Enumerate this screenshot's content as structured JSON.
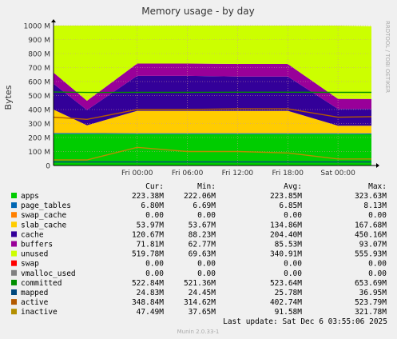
{
  "chart_data": {
    "type": "area",
    "title": "Memory usage - by day",
    "ylabel": "Bytes",
    "side_label": "RRDTOOL / TOBI OETIKER",
    "ylim": [
      0,
      1000
    ],
    "yticks": [
      "0",
      "100 M",
      "200 M",
      "300 M",
      "400 M",
      "500 M",
      "600 M",
      "700 M",
      "800 M",
      "900 M",
      "1000 M"
    ],
    "xticks": [
      "Fri 00:00",
      "Fri 06:00",
      "Fri 12:00",
      "Fri 18:00",
      "Sat 00:00"
    ],
    "x_hours": [
      -10,
      -6,
      0,
      6,
      12,
      18,
      24,
      28
    ],
    "stacked": [
      {
        "name": "apps",
        "values": [
          225,
          225,
          224,
          224,
          224,
          224,
          224,
          223
        ]
      },
      {
        "name": "page_tables",
        "values": [
          6.8,
          6.8,
          6.7,
          6.8,
          6.8,
          6.8,
          6.8,
          6.8
        ]
      },
      {
        "name": "swap_cache",
        "values": [
          0,
          0,
          0,
          0,
          0,
          0,
          0,
          0
        ]
      },
      {
        "name": "slab_cache",
        "values": [
          168,
          55,
          160,
          160,
          160,
          160,
          54,
          54
        ]
      },
      {
        "name": "cache",
        "values": [
          185,
          110,
          250,
          250,
          245,
          245,
          120,
          120
        ]
      },
      {
        "name": "buffers",
        "values": [
          80,
          66,
          88,
          88,
          90,
          90,
          72,
          72
        ]
      },
      {
        "name": "unused",
        "values": [
          335,
          537,
          271,
          271,
          274,
          274,
          523,
          520
        ]
      },
      {
        "name": "swap",
        "values": [
          0,
          0,
          0,
          0,
          0,
          0,
          0,
          0
        ]
      },
      {
        "name": "vmalloc_used",
        "values": [
          0,
          0,
          0,
          0,
          0,
          0,
          0,
          0
        ]
      }
    ],
    "lines": [
      {
        "name": "committed",
        "values": [
          525,
          522,
          523,
          523,
          524,
          524,
          523,
          523
        ]
      },
      {
        "name": "mapped",
        "values": [
          25,
          25,
          25,
          25,
          25,
          25,
          25,
          25
        ]
      },
      {
        "name": "active",
        "values": [
          345,
          330,
          400,
          400,
          405,
          405,
          345,
          349
        ]
      },
      {
        "name": "inactive",
        "values": [
          40,
          40,
          130,
          100,
          100,
          90,
          47,
          47
        ]
      }
    ],
    "legend": {
      "headers": [
        "Cur:",
        "Min:",
        "Avg:",
        "Max:"
      ],
      "rows": [
        {
          "name": "apps",
          "color": "#00cc00",
          "cur": "223.38M",
          "min": "222.06M",
          "avg": "223.85M",
          "max": "323.63M"
        },
        {
          "name": "page_tables",
          "color": "#0066b3",
          "cur": "6.80M",
          "min": "6.69M",
          "avg": "6.85M",
          "max": "8.13M"
        },
        {
          "name": "swap_cache",
          "color": "#ff8000",
          "cur": "0.00",
          "min": "0.00",
          "avg": "0.00",
          "max": "0.00"
        },
        {
          "name": "slab_cache",
          "color": "#ffcc00",
          "cur": "53.97M",
          "min": "53.67M",
          "avg": "134.86M",
          "max": "167.68M"
        },
        {
          "name": "cache",
          "color": "#330099",
          "cur": "120.67M",
          "min": "88.23M",
          "avg": "204.40M",
          "max": "450.16M"
        },
        {
          "name": "buffers",
          "color": "#990099",
          "cur": "71.81M",
          "min": "62.77M",
          "avg": "85.53M",
          "max": "93.07M"
        },
        {
          "name": "unused",
          "color": "#ccff00",
          "cur": "519.78M",
          "min": "69.63M",
          "avg": "340.91M",
          "max": "555.93M"
        },
        {
          "name": "swap",
          "color": "#ff0000",
          "cur": "0.00",
          "min": "0.00",
          "avg": "0.00",
          "max": "0.00"
        },
        {
          "name": "vmalloc_used",
          "color": "#808080",
          "cur": "0.00",
          "min": "0.00",
          "avg": "0.00",
          "max": "0.00"
        },
        {
          "name": "committed",
          "color": "#008f00",
          "cur": "522.84M",
          "min": "521.36M",
          "avg": "523.64M",
          "max": "653.69M"
        },
        {
          "name": "mapped",
          "color": "#00487d",
          "cur": "24.83M",
          "min": "24.45M",
          "avg": "25.78M",
          "max": "36.95M"
        },
        {
          "name": "active",
          "color": "#b35a00",
          "cur": "348.84M",
          "min": "314.62M",
          "avg": "402.74M",
          "max": "523.79M"
        },
        {
          "name": "inactive",
          "color": "#b38f00",
          "cur": "47.49M",
          "min": "37.65M",
          "avg": "91.58M",
          "max": "321.78M"
        }
      ]
    },
    "last_update": "Last update:  Sat Dec  6 03:55:06 2025",
    "footer": "Munin 2.0.33-1"
  }
}
